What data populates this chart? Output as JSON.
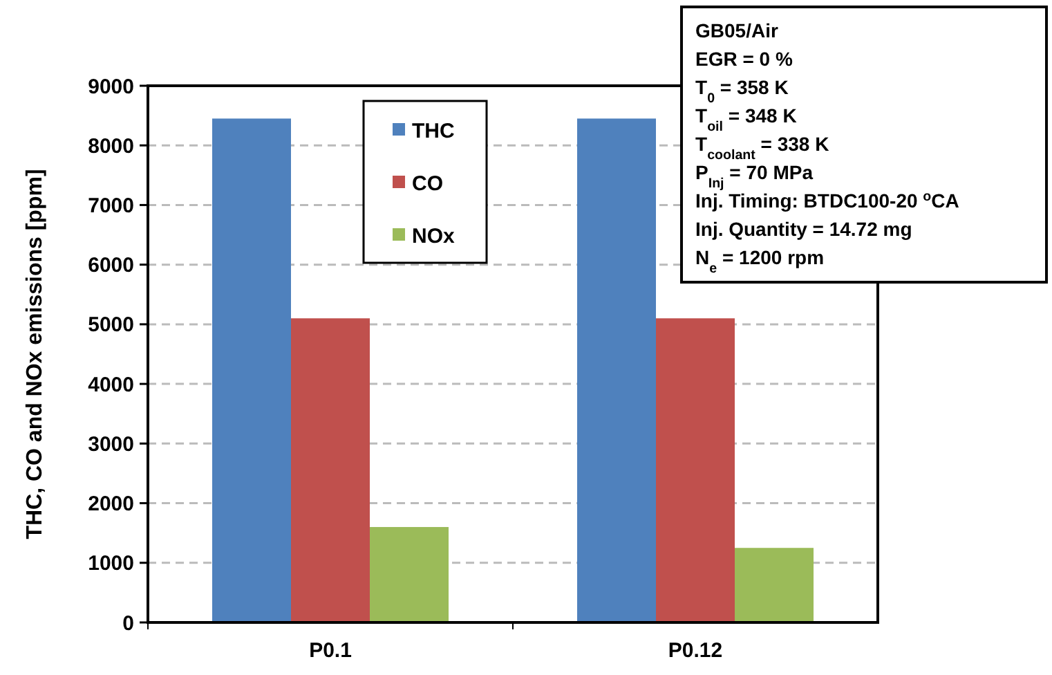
{
  "chart_data": {
    "type": "bar",
    "ylabel": "THC, CO and NOx emissions [ppm]",
    "categories": [
      "P0.1",
      "P0.12"
    ],
    "series": [
      {
        "name": "THC",
        "color": "#4f81bd",
        "values": [
          8450,
          8450
        ]
      },
      {
        "name": "CO",
        "color": "#c0504d",
        "values": [
          5100,
          5100
        ]
      },
      {
        "name": "NOx",
        "color": "#9bbb59",
        "values": [
          1600,
          1250
        ]
      }
    ],
    "ylim": [
      0,
      9000
    ],
    "yticks": [
      0,
      1000,
      2000,
      3000,
      4000,
      5000,
      6000,
      7000,
      8000,
      9000
    ],
    "grid": "y",
    "legend": "top",
    "annotations": [
      "GB05/Air",
      "EGR = 0 %",
      "T$_{0}$ = 358 K",
      "T$_{oil}$ = 348 K",
      "T$_{coolant}$ = 338 K",
      "P$_{Inj}$ = 70 MPa",
      "Inj. Timing:  BTDC100-20 $^{o}$CA",
      "Inj. Quantity = 14.72 mg",
      "N$_{e}$ = 1200 rpm"
    ]
  }
}
